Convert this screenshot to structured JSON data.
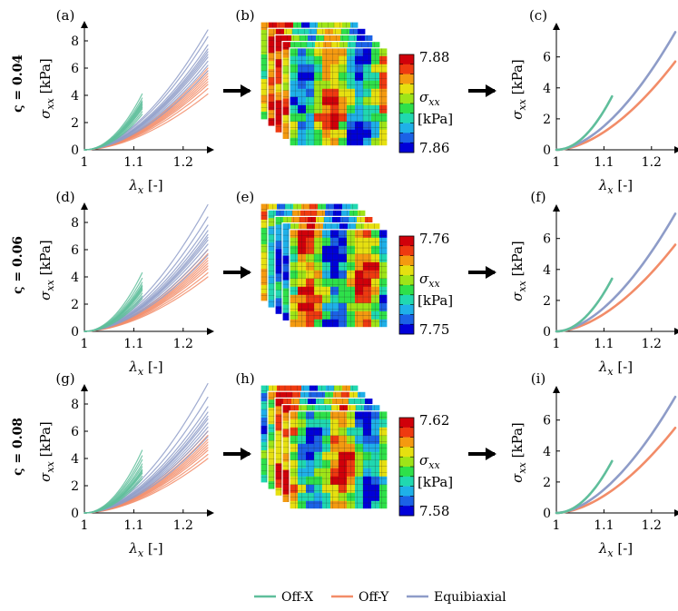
{
  "rows": [
    {
      "label": "ς = 0.04",
      "panels": [
        "(a)",
        "(b)",
        "(c)"
      ],
      "colorbar": {
        "max": "7.88",
        "min": "7.86",
        "label": "σxx",
        "unit": "[kPa]"
      }
    },
    {
      "label": "ς = 0.06",
      "panels": [
        "(d)",
        "(e)",
        "(f)"
      ],
      "colorbar": {
        "max": "7.76",
        "min": "7.75",
        "label": "σxx",
        "unit": "[kPa]"
      }
    },
    {
      "label": "ς = 0.08",
      "panels": [
        "(g)",
        "(h)",
        "(i)"
      ],
      "colorbar": {
        "max": "7.62",
        "min": "7.58",
        "label": "σxx",
        "unit": "[kPa]"
      }
    }
  ],
  "axes": {
    "xlabel": "λx [-]",
    "ylabel": "σxx [kPa]",
    "xlim": [
      1.0,
      1.25
    ],
    "left_ylim": [
      0,
      9
    ],
    "right_ylim": [
      0,
      7.8
    ],
    "xticks": [
      "1",
      "1.1",
      "1.2"
    ],
    "left_yticks": [
      "0",
      "2",
      "4",
      "6",
      "8"
    ],
    "right_yticks": [
      "0",
      "2",
      "4",
      "6"
    ]
  },
  "legend": {
    "position": "bottom-center",
    "items": [
      {
        "name": "Off-X",
        "color": "#5fbe9b"
      },
      {
        "name": "Off-Y",
        "color": "#f28c68"
      },
      {
        "name": "Equibiaxial",
        "color": "#8e9cc8"
      }
    ]
  },
  "colors": {
    "off_x": "#5fbe9b",
    "off_y": "#f28c68",
    "equibiaxial": "#8e9cc8",
    "colormap": [
      "#0000d8",
      "#1b62e6",
      "#1fb0e8",
      "#20d8b0",
      "#2ee04a",
      "#9ee418",
      "#e6e010",
      "#f49a10",
      "#ee3a10",
      "#d0000a"
    ]
  },
  "chart_data": [
    {
      "type": "line",
      "panel": "(a)",
      "xlabel": "λx [-]",
      "ylabel": "σxx [kPa]",
      "xlim": [
        1.0,
        1.25
      ],
      "ylim": [
        0,
        9
      ],
      "series": [
        {
          "name": "Off-X",
          "x_end": 1.117,
          "y_end": [
            2.6,
            2.8,
            3.0,
            3.1,
            3.2,
            3.3,
            3.4,
            3.5,
            3.6,
            3.8,
            4.1
          ]
        },
        {
          "name": "Off-Y",
          "x_end": 1.25,
          "y_end": [
            4.1,
            4.5,
            4.8,
            5.0,
            5.2,
            5.4,
            5.6,
            5.8,
            6.0
          ]
        },
        {
          "name": "Equibiaxial",
          "x_end": 1.25,
          "y_end": [
            5.8,
            6.2,
            6.5,
            6.8,
            7.0,
            7.2,
            7.4,
            7.7,
            8.3,
            8.8
          ]
        }
      ]
    },
    {
      "type": "heatmap",
      "panel": "(b)",
      "colorbar": {
        "min": 7.86,
        "max": 7.88,
        "label": "σxx [kPa]"
      }
    },
    {
      "type": "line",
      "panel": "(c)",
      "xlabel": "λx [-]",
      "ylabel": "σxx [kPa]",
      "xlim": [
        1.0,
        1.25
      ],
      "ylim": [
        0,
        7.8
      ],
      "series": [
        {
          "name": "Off-X",
          "x_end": 1.117,
          "y_end": 3.45
        },
        {
          "name": "Off-Y",
          "x_end": 1.25,
          "y_end": 5.7
        },
        {
          "name": "Equibiaxial",
          "x_end": 1.25,
          "y_end": 7.6
        }
      ]
    },
    {
      "type": "line",
      "panel": "(d)",
      "xlabel": "λx [-]",
      "ylabel": "σxx [kPa]",
      "xlim": [
        1.0,
        1.25
      ],
      "ylim": [
        0,
        9
      ],
      "series": [
        {
          "name": "Off-X",
          "x_end": 1.117,
          "y_end": [
            2.4,
            2.6,
            2.8,
            3.0,
            3.1,
            3.2,
            3.3,
            3.4,
            3.6,
            3.9,
            4.3
          ]
        },
        {
          "name": "Off-Y",
          "x_end": 1.25,
          "y_end": [
            4.0,
            4.3,
            4.6,
            4.8,
            5.0,
            5.2,
            5.4,
            5.7,
            6.0
          ]
        },
        {
          "name": "Equibiaxial",
          "x_end": 1.25,
          "y_end": [
            5.6,
            6.0,
            6.4,
            6.7,
            6.9,
            7.1,
            7.4,
            7.8,
            8.4,
            9.3
          ]
        }
      ]
    },
    {
      "type": "heatmap",
      "panel": "(e)",
      "colorbar": {
        "min": 7.75,
        "max": 7.76,
        "label": "σxx [kPa]"
      }
    },
    {
      "type": "line",
      "panel": "(f)",
      "xlabel": "λx [-]",
      "ylabel": "σxx [kPa]",
      "xlim": [
        1.0,
        1.25
      ],
      "ylim": [
        0,
        7.8
      ],
      "series": [
        {
          "name": "Off-X",
          "x_end": 1.117,
          "y_end": 3.4
        },
        {
          "name": "Off-Y",
          "x_end": 1.25,
          "y_end": 5.6
        },
        {
          "name": "Equibiaxial",
          "x_end": 1.25,
          "y_end": 7.6
        }
      ]
    },
    {
      "type": "line",
      "panel": "(g)",
      "xlabel": "λx [-]",
      "ylabel": "σxx [kPa]",
      "xlim": [
        1.0,
        1.25
      ],
      "ylim": [
        0,
        9
      ],
      "series": [
        {
          "name": "Off-X",
          "x_end": 1.117,
          "y_end": [
            2.5,
            2.7,
            2.9,
            3.0,
            3.1,
            3.2,
            3.4,
            3.6,
            3.9,
            4.2,
            4.6
          ]
        },
        {
          "name": "Off-Y",
          "x_end": 1.25,
          "y_end": [
            4.0,
            4.3,
            4.6,
            4.8,
            5.0,
            5.2,
            5.4,
            5.7,
            6.0
          ]
        },
        {
          "name": "Equibiaxial",
          "x_end": 1.25,
          "y_end": [
            5.6,
            6.0,
            6.3,
            6.6,
            6.9,
            7.1,
            7.4,
            7.8,
            8.5,
            9.5
          ]
        }
      ]
    },
    {
      "type": "heatmap",
      "panel": "(h)",
      "colorbar": {
        "min": 7.58,
        "max": 7.62,
        "label": "σxx [kPa]"
      }
    },
    {
      "type": "line",
      "panel": "(i)",
      "xlabel": "λx [-]",
      "ylabel": "σxx [kPa]",
      "xlim": [
        1.0,
        1.25
      ],
      "ylim": [
        0,
        7.8
      ],
      "series": [
        {
          "name": "Off-X",
          "x_end": 1.117,
          "y_end": 3.35
        },
        {
          "name": "Off-Y",
          "x_end": 1.25,
          "y_end": 5.5
        },
        {
          "name": "Equibiaxial",
          "x_end": 1.25,
          "y_end": 7.5
        }
      ]
    }
  ]
}
